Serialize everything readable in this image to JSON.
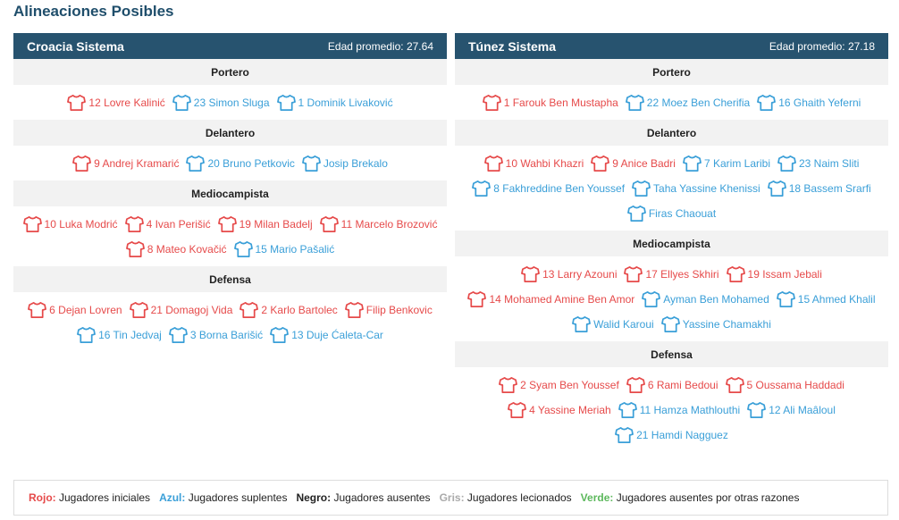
{
  "page": {
    "title": "Alineaciones Posibles"
  },
  "colors": {
    "header_bg": "#27536f",
    "starter": "#e64a4a",
    "sub": "#3a9fd8"
  },
  "teams": [
    {
      "name": "Croacia Sistema",
      "age_label": "Edad promedio:  27.64",
      "positions": [
        {
          "label": "Portero",
          "players": [
            {
              "text": "12 Lovre Kalinić",
              "status": "red"
            },
            {
              "text": "23 Simon Sluga",
              "status": "blue"
            },
            {
              "text": "1 Dominik Livaković",
              "status": "blue"
            }
          ]
        },
        {
          "label": "Delantero",
          "players": [
            {
              "text": "9 Andrej Kramarić",
              "status": "red"
            },
            {
              "text": "20 Bruno Petkovic",
              "status": "blue"
            },
            {
              "text": "Josip Brekalo",
              "status": "blue"
            }
          ]
        },
        {
          "label": "Mediocampista",
          "players": [
            {
              "text": "10 Luka Modrić",
              "status": "red"
            },
            {
              "text": "4 Ivan Perišić",
              "status": "red"
            },
            {
              "text": "19 Milan Badelj",
              "status": "red"
            },
            {
              "text": "11 Marcelo Brozović",
              "status": "red"
            },
            {
              "text": "8 Mateo Kovačić",
              "status": "red"
            },
            {
              "text": "15 Mario Pašalić",
              "status": "blue"
            }
          ]
        },
        {
          "label": "Defensa",
          "players": [
            {
              "text": "6 Dejan Lovren",
              "status": "red"
            },
            {
              "text": "21 Domagoj Vida",
              "status": "red"
            },
            {
              "text": "2 Karlo Bartolec",
              "status": "red"
            },
            {
              "text": "Filip Benkovic",
              "status": "red"
            },
            {
              "text": "16 Tin Jedvaj",
              "status": "blue"
            },
            {
              "text": "3 Borna Barišić",
              "status": "blue"
            },
            {
              "text": "13 Duje Ćaleta-Car",
              "status": "blue"
            }
          ]
        }
      ]
    },
    {
      "name": "Túnez Sistema",
      "age_label": "Edad promedio:  27.18",
      "positions": [
        {
          "label": "Portero",
          "players": [
            {
              "text": "1 Farouk Ben Mustapha",
              "status": "red"
            },
            {
              "text": "22 Moez Ben Cherifia",
              "status": "blue"
            },
            {
              "text": "16 Ghaith Yeferni",
              "status": "blue"
            }
          ]
        },
        {
          "label": "Delantero",
          "players": [
            {
              "text": "10 Wahbi Khazri",
              "status": "red"
            },
            {
              "text": "9 Anice Badri",
              "status": "red"
            },
            {
              "text": "7 Karim Laribi",
              "status": "blue"
            },
            {
              "text": "23 Naim Sliti",
              "status": "blue"
            },
            {
              "text": "8 Fakhreddine Ben Youssef",
              "status": "blue"
            },
            {
              "text": "Taha Yassine Khenissi",
              "status": "blue"
            },
            {
              "text": "18 Bassem Srarfi",
              "status": "blue"
            },
            {
              "text": "Firas Chaouat",
              "status": "blue"
            }
          ]
        },
        {
          "label": "Mediocampista",
          "players": [
            {
              "text": "13 Larry Azouni",
              "status": "red"
            },
            {
              "text": "17 Ellyes Skhiri",
              "status": "red"
            },
            {
              "text": "19 Issam Jebali",
              "status": "red"
            },
            {
              "text": "14 Mohamed Amine Ben Amor",
              "status": "red"
            },
            {
              "text": "Ayman Ben Mohamed",
              "status": "blue"
            },
            {
              "text": "15 Ahmed Khalil",
              "status": "blue"
            },
            {
              "text": "Walid Karoui",
              "status": "blue"
            },
            {
              "text": "Yassine Chamakhi",
              "status": "blue"
            }
          ]
        },
        {
          "label": "Defensa",
          "players": [
            {
              "text": "2 Syam Ben Youssef",
              "status": "red"
            },
            {
              "text": "6 Rami Bedoui",
              "status": "red"
            },
            {
              "text": "5 Oussama Haddadi",
              "status": "red"
            },
            {
              "text": "4 Yassine Meriah",
              "status": "red"
            },
            {
              "text": "11 Hamza Mathlouthi",
              "status": "blue"
            },
            {
              "text": "12 Ali Maâloul",
              "status": "blue"
            },
            {
              "text": "21 Hamdi Nagguez",
              "status": "blue"
            }
          ]
        }
      ]
    }
  ],
  "legend": [
    {
      "key": "Rojo:",
      "desc": "Jugadores iniciales",
      "color": "#e64a4a"
    },
    {
      "key": "Azul:",
      "desc": "Jugadores suplentes",
      "color": "#3a9fd8"
    },
    {
      "key": "Negro:",
      "desc": "Jugadores ausentes",
      "color": "#222222"
    },
    {
      "key": "Gris:",
      "desc": "Jugadores lecionados",
      "color": "#aaaaaa"
    },
    {
      "key": "Verde:",
      "desc": "Jugadores ausentes por otras razones",
      "color": "#5cb85c"
    }
  ]
}
